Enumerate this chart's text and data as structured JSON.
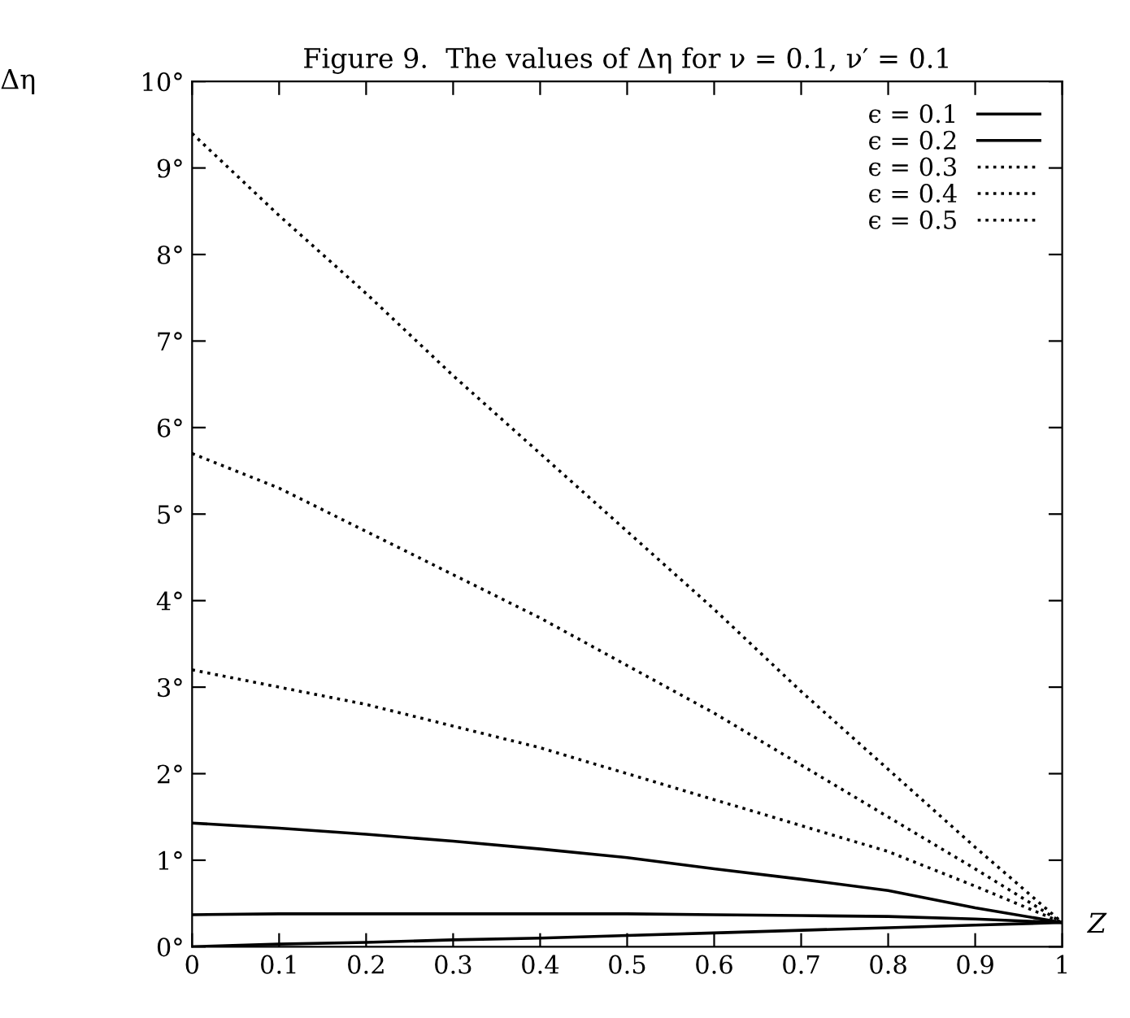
{
  "chart_data": {
    "type": "line",
    "title": "Figure 9.  The values of Δη for ν = 0.1, ν′ = 0.1",
    "xlabel": "Z",
    "ylabel": "Δη",
    "x": [
      0,
      0.1,
      0.2,
      0.3,
      0.4,
      0.5,
      0.6,
      0.7,
      0.8,
      0.9,
      1
    ],
    "series": [
      {
        "name": "ϵ = 0.1",
        "color": "#000000",
        "line_style": "solid",
        "values": [
          0.37,
          0.38,
          0.38,
          0.38,
          0.38,
          0.38,
          0.37,
          0.36,
          0.35,
          0.32,
          0.28
        ]
      },
      {
        "name": "ϵ = 0.2",
        "color": "#000000",
        "line_style": "solid",
        "values": [
          1.43,
          1.37,
          1.3,
          1.22,
          1.13,
          1.03,
          0.9,
          0.78,
          0.65,
          0.45,
          0.28
        ]
      },
      {
        "name": "ϵ = 0.3",
        "color": "#000000",
        "line_style": "dotted",
        "values": [
          3.2,
          3.0,
          2.8,
          2.55,
          2.3,
          2.0,
          1.7,
          1.4,
          1.1,
          0.7,
          0.28
        ]
      },
      {
        "name": "ϵ = 0.4",
        "color": "#000000",
        "line_style": "dotted",
        "values": [
          5.7,
          5.3,
          4.8,
          4.3,
          3.8,
          3.25,
          2.7,
          2.1,
          1.5,
          0.9,
          0.28
        ]
      },
      {
        "name": "ϵ = 0.5",
        "color": "#000000",
        "line_style": "dotted",
        "values": [
          9.4,
          8.45,
          7.55,
          6.6,
          5.7,
          4.8,
          3.9,
          2.95,
          2.05,
          1.15,
          0.28
        ]
      },
      {
        "color": "#000000",
        "line_style": "solid",
        "values": [
          0,
          0.03,
          0.05,
          0.08,
          0.1,
          0.13,
          0.16,
          0.19,
          0.22,
          0.25,
          0.28
        ]
      }
    ],
    "xlim": [
      0,
      1
    ],
    "xticks": [
      0,
      0.1,
      0.2,
      0.3,
      0.4,
      0.5,
      0.6,
      0.7,
      0.8,
      0.9,
      1
    ],
    "ylim": [
      0,
      10
    ],
    "yticks": [
      {
        "value": 0,
        "label": "0°"
      },
      {
        "value": 1,
        "label": "1°"
      },
      {
        "value": 2,
        "label": "2°"
      },
      {
        "value": 3,
        "label": "3°"
      },
      {
        "value": 4,
        "label": "4°"
      },
      {
        "value": 5,
        "label": "5°"
      },
      {
        "value": 6,
        "label": "6°"
      },
      {
        "value": 7,
        "label": "7°"
      },
      {
        "value": 8,
        "label": "8°"
      },
      {
        "value": 9,
        "label": "9°"
      },
      {
        "value": 10,
        "label": "10°"
      }
    ],
    "legend": "top right",
    "grid": false,
    "marker": "none"
  }
}
